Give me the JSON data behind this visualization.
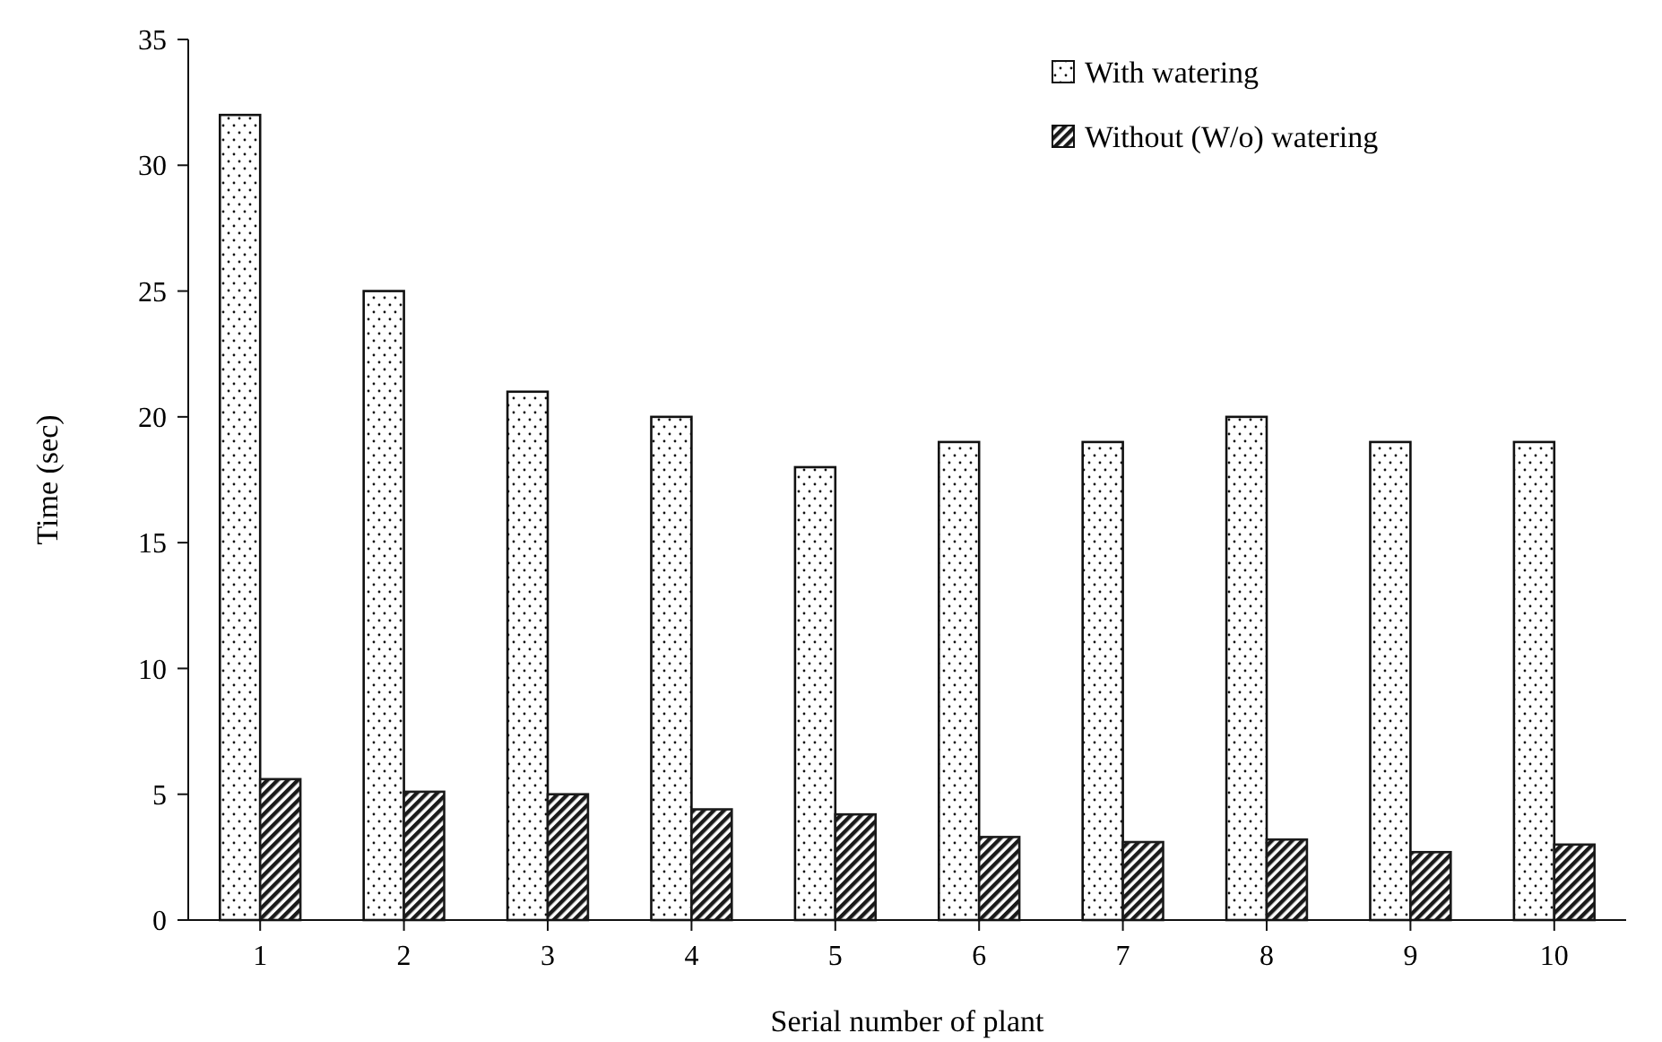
{
  "chart_data": {
    "type": "bar",
    "xlabel": "Serial number of plant",
    "ylabel": "Time (sec)",
    "categories": [
      "1",
      "2",
      "3",
      "4",
      "5",
      "6",
      "7",
      "8",
      "9",
      "10"
    ],
    "series": [
      {
        "name": "With watering",
        "color": "#111111",
        "values": [
          32,
          25,
          21,
          20,
          18,
          19,
          19,
          20,
          19,
          19
        ]
      },
      {
        "name": "Without (W/o) watering",
        "color": "#1a1a1a",
        "values": [
          5.6,
          5.1,
          5.0,
          4.4,
          4.2,
          3.3,
          3.1,
          3.2,
          2.7,
          3.0
        ]
      }
    ],
    "ylim": [
      0,
      35
    ],
    "yticks": [
      0,
      5,
      10,
      15,
      20,
      25,
      30,
      35
    ],
    "grid": false,
    "legend": "top right"
  }
}
